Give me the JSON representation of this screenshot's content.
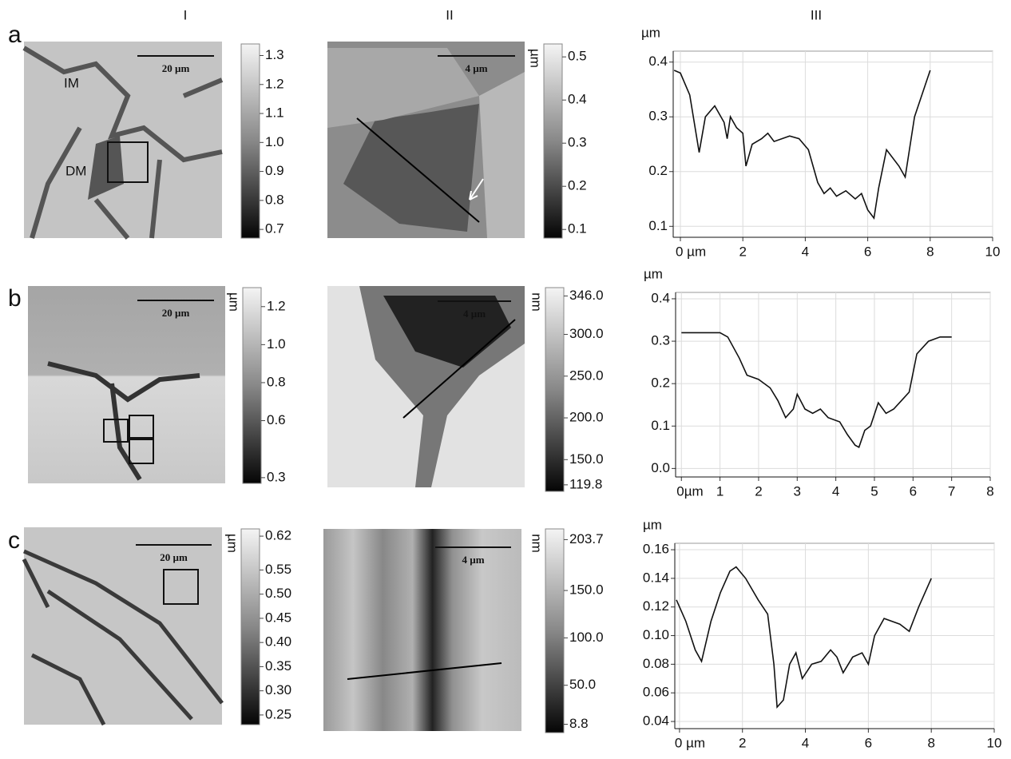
{
  "column_labels": [
    "I",
    "II",
    "III"
  ],
  "rows": [
    {
      "label": "a",
      "image_I": {
        "labels": [
          "IM",
          "DM"
        ],
        "scale_bar": "20 µm",
        "colorbar": {
          "lim": [
            0.67,
            1.34
          ],
          "ticks": [
            1.3,
            1.2,
            1.1,
            {
              "value": 1,
              "label": "1.0"
            },
            0.9,
            0.8,
            0.7
          ]
        }
      },
      "image_II": {
        "scale_bar": "4 µm",
        "colorbar": {
          "unit": "µm",
          "lim": [
            0.08,
            0.53
          ],
          "ticks": [
            0.5,
            0.4,
            0.3,
            0.2,
            0.1
          ]
        }
      }
    },
    {
      "label": "b",
      "image_I": {
        "scale_bar": "20 µm",
        "colorbar": {
          "unit": "µm",
          "lim": [
            0.27,
            1.3
          ],
          "ticks": [
            1.2,
            {
              "value": 1,
              "label": "1.0"
            },
            0.8,
            0.6,
            0.3
          ]
        }
      },
      "image_II": {
        "scale_bar": "4 µm",
        "colorbar": {
          "unit": "nm",
          "lim": [
            112,
            356
          ],
          "ticks": [
            {
              "value": 346,
              "label": "346.0"
            },
            {
              "value": 300,
              "label": "300.0"
            },
            {
              "value": 250,
              "label": "250.0"
            },
            {
              "value": 200,
              "label": "200.0"
            },
            {
              "value": 150,
              "label": "150.0"
            },
            119.8
          ]
        }
      }
    },
    {
      "label": "c",
      "image_I": {
        "scale_bar": "20 µm",
        "colorbar": {
          "unit": "µm",
          "lim": [
            0.23,
            0.635
          ],
          "ticks": [
            0.62,
            0.55,
            {
              "value": 0.5,
              "label": "0.50"
            },
            0.45,
            {
              "value": 0.4,
              "label": "0.40"
            },
            0.35,
            {
              "value": 0.3,
              "label": "0.30"
            },
            0.25
          ]
        }
      },
      "image_II": {
        "scale_bar": "4 µm",
        "colorbar": {
          "unit": "nm",
          "lim": [
            0,
            215
          ],
          "ticks": [
            203.7,
            {
              "value": 150,
              "label": "150.0"
            },
            {
              "value": 100,
              "label": "100.0"
            },
            {
              "value": 50,
              "label": "50.0"
            },
            8.8
          ]
        }
      }
    }
  ],
  "chart_data": [
    {
      "type": "line",
      "y_label": "µm",
      "color": "#111111",
      "grid": true,
      "x": [
        -0.2,
        0,
        0.3,
        0.6,
        0.8,
        1.1,
        1.4,
        1.5,
        1.6,
        1.8,
        2.0,
        2.1,
        2.3,
        2.6,
        2.8,
        3.0,
        3.5,
        3.8,
        4.1,
        4.4,
        4.6,
        4.8,
        5.0,
        5.3,
        5.6,
        5.8,
        6.0,
        6.2,
        6.35,
        6.6,
        7.0,
        7.2,
        7.5,
        8.0
      ],
      "values": [
        0.385,
        0.38,
        0.34,
        0.235,
        0.3,
        0.32,
        0.29,
        0.26,
        0.3,
        0.28,
        0.27,
        0.21,
        0.25,
        0.26,
        0.27,
        0.255,
        0.265,
        0.26,
        0.24,
        0.18,
        0.16,
        0.17,
        0.155,
        0.165,
        0.15,
        0.16,
        0.13,
        0.115,
        0.17,
        0.24,
        0.21,
        0.19,
        0.3,
        0.385
      ],
      "xlim": [
        -0.23,
        10
      ],
      "ylim": [
        0.08,
        0.42
      ],
      "xticks": [
        {
          "value": 0,
          "label": "0 µm"
        },
        2,
        4,
        6,
        8,
        10
      ],
      "yticks": [
        0.1,
        0.2,
        0.3,
        0.4
      ]
    },
    {
      "type": "line",
      "y_label": "µm",
      "color": "#111111",
      "grid": true,
      "x": [
        0,
        1,
        1.2,
        1.5,
        1.7,
        2.0,
        2.3,
        2.5,
        2.7,
        2.9,
        3.0,
        3.2,
        3.4,
        3.6,
        3.8,
        4.1,
        4.3,
        4.5,
        4.6,
        4.75,
        4.9,
        5.1,
        5.3,
        5.5,
        5.7,
        5.9,
        6.1,
        6.4,
        6.7,
        7.0
      ],
      "values": [
        0.32,
        0.32,
        0.31,
        0.26,
        0.22,
        0.21,
        0.19,
        0.16,
        0.12,
        0.14,
        0.175,
        0.14,
        0.13,
        0.14,
        0.12,
        0.11,
        0.08,
        0.055,
        0.05,
        0.09,
        0.1,
        0.155,
        0.13,
        0.14,
        0.16,
        0.18,
        0.27,
        0.3,
        0.31,
        0.31
      ],
      "xlim": [
        -0.15,
        8
      ],
      "ylim": [
        -0.02,
        0.415
      ],
      "xticks": [
        {
          "value": 0,
          "label": "0µm"
        },
        1,
        2,
        3,
        4,
        5,
        6,
        7,
        8
      ],
      "yticks": [
        {
          "value": 0,
          "label": "0.0"
        },
        0.1,
        0.2,
        0.3,
        0.4
      ]
    },
    {
      "type": "line",
      "y_label": "µm",
      "color": "#111111",
      "grid": true,
      "x": [
        -0.1,
        0.2,
        0.5,
        0.7,
        1.0,
        1.3,
        1.6,
        1.8,
        2.1,
        2.5,
        2.8,
        3.0,
        3.1,
        3.3,
        3.5,
        3.7,
        3.9,
        4.2,
        4.5,
        4.8,
        5.0,
        5.2,
        5.5,
        5.8,
        6.0,
        6.2,
        6.5,
        7.0,
        7.3,
        7.6,
        8.0
      ],
      "values": [
        0.125,
        0.11,
        0.09,
        0.082,
        0.11,
        0.13,
        0.145,
        0.148,
        0.14,
        0.125,
        0.115,
        0.08,
        0.05,
        0.055,
        0.08,
        0.088,
        0.07,
        0.08,
        0.082,
        0.09,
        0.085,
        0.074,
        0.085,
        0.088,
        0.08,
        0.1,
        0.112,
        0.108,
        0.103,
        0.12,
        0.14
      ],
      "xlim": [
        -0.15,
        10
      ],
      "ylim": [
        0.035,
        0.1645
      ],
      "xticks": [
        {
          "value": 0,
          "label": "0 µm"
        },
        2,
        4,
        6,
        8,
        10
      ],
      "yticks": [
        0.04,
        0.06,
        0.08,
        {
          "value": 0.1,
          "label": "0.10"
        },
        0.12,
        0.14,
        0.16
      ]
    }
  ]
}
